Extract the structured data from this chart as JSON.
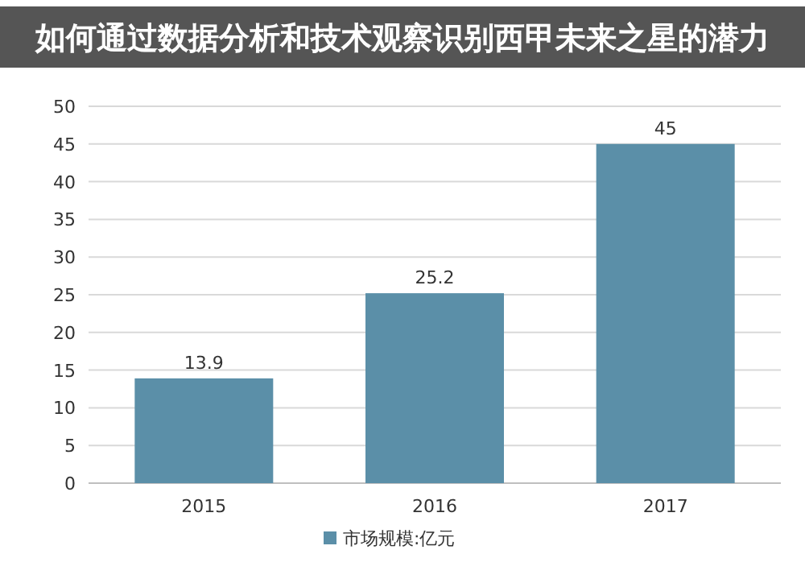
{
  "chart_data": {
    "type": "bar",
    "title": "如何通过数据分析和技术观察识别西甲未来之星的潜力",
    "categories": [
      "2015",
      "2016",
      "2017"
    ],
    "series": [
      {
        "name": "市场规模:亿元",
        "color": "#5b8fa8",
        "values": [
          13.9,
          25.2,
          45
        ]
      }
    ],
    "ylim": [
      0,
      50
    ],
    "yticks": [
      0,
      5,
      10,
      15,
      20,
      25,
      30,
      35,
      40,
      45,
      50
    ],
    "grid": "y",
    "legend": "bottom",
    "data_labels": true
  }
}
